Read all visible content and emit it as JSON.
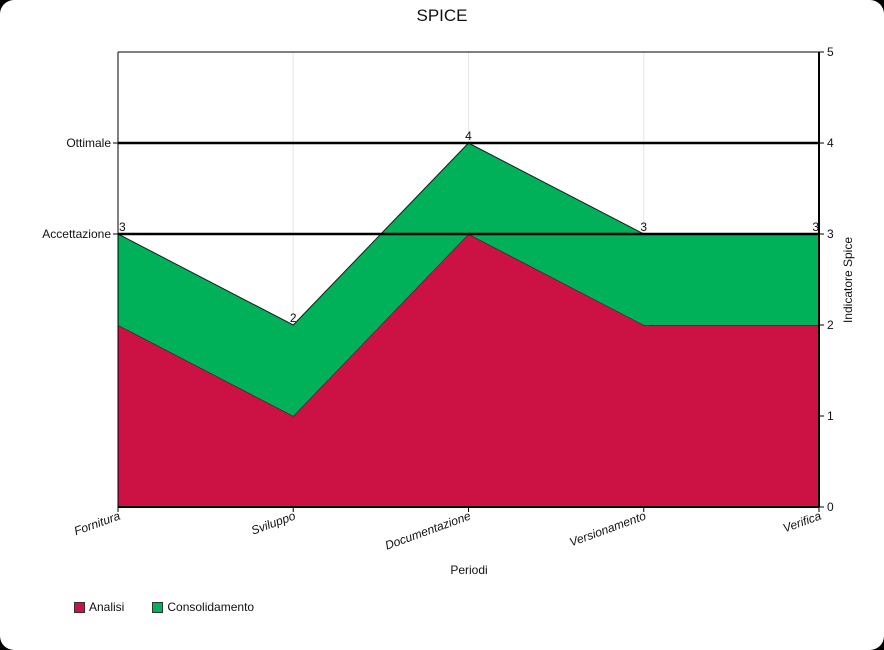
{
  "chart_data": {
    "type": "area",
    "stacked": true,
    "title": "SPICE",
    "xlabel": "Periodi",
    "ylabel": "Indicatore Spice",
    "categories": [
      "Fornitura",
      "Sviluppo",
      "Documentazione",
      "Versionamento",
      "Verifica"
    ],
    "series": [
      {
        "name": "Analisi",
        "values": [
          2,
          1,
          3,
          2,
          2
        ],
        "color": "#cc1244"
      },
      {
        "name": "Consolidamento",
        "values": [
          1,
          1,
          1,
          1,
          1
        ],
        "color": "#00b159"
      }
    ],
    "totals": [
      3,
      2,
      4,
      3,
      3
    ],
    "ylim": [
      0,
      5
    ],
    "y_ticks": [
      0,
      1,
      2,
      3,
      4,
      5
    ],
    "y_axis_side": "right",
    "reference_lines": [
      {
        "label": "Ottimale",
        "value": 4
      },
      {
        "label": "Accettazione",
        "value": 3
      }
    ],
    "grid": "vertical-light",
    "legend_position": "bottom-left"
  }
}
